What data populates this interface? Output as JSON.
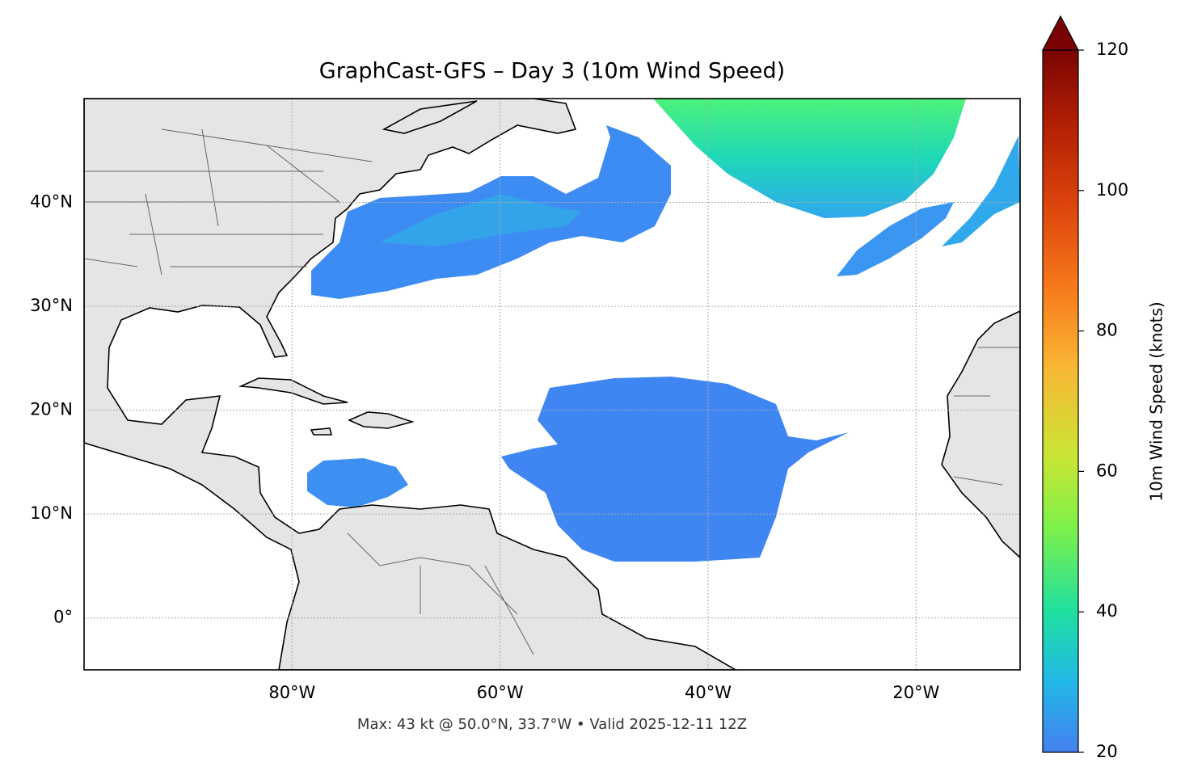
{
  "chart_data": {
    "type": "map",
    "title": "GraphCast-GFS – Day 3 (10m Wind Speed)",
    "annotation": "Max: 43 kt @ 50.0°N, 33.7°W • Valid 2025-12-11 12Z",
    "xlim": [
      -100,
      -10
    ],
    "ylim": [
      -5,
      50
    ],
    "xticks": [
      {
        "value": -80,
        "label": "80°W"
      },
      {
        "value": -60,
        "label": "60°W"
      },
      {
        "value": -40,
        "label": "40°W"
      },
      {
        "value": -20,
        "label": "20°W"
      }
    ],
    "yticks": [
      {
        "value": 0,
        "label": "0°"
      },
      {
        "value": 10,
        "label": "10°N"
      },
      {
        "value": 20,
        "label": "20°N"
      },
      {
        "value": 30,
        "label": "30°N"
      },
      {
        "value": 40,
        "label": "40°N"
      }
    ],
    "grid": true,
    "colorbar": {
      "label": "10m Wind Speed (knots)",
      "lim": [
        20,
        120
      ],
      "ticks": [
        20,
        40,
        60,
        80,
        100,
        120
      ]
    }
  }
}
